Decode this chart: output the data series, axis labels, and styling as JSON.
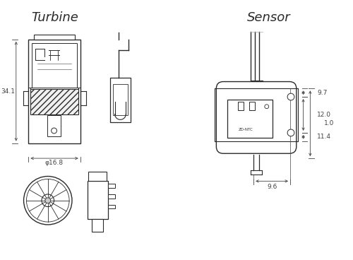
{
  "title_turbine": "Turbine",
  "title_sensor": "Sensor",
  "bg_color": "#ffffff",
  "line_color": "#2a2a2a",
  "dim_color": "#444444",
  "dim_font_size": 6.5,
  "title_font_size": 13,
  "dims": {
    "turbine_height": "34.1",
    "turbine_width": "φ16.8",
    "sensor_w": "9.6",
    "sensor_h1": "11.4",
    "sensor_h2": "12.0",
    "sensor_h3": "9.7",
    "sensor_h4": "1.0"
  }
}
